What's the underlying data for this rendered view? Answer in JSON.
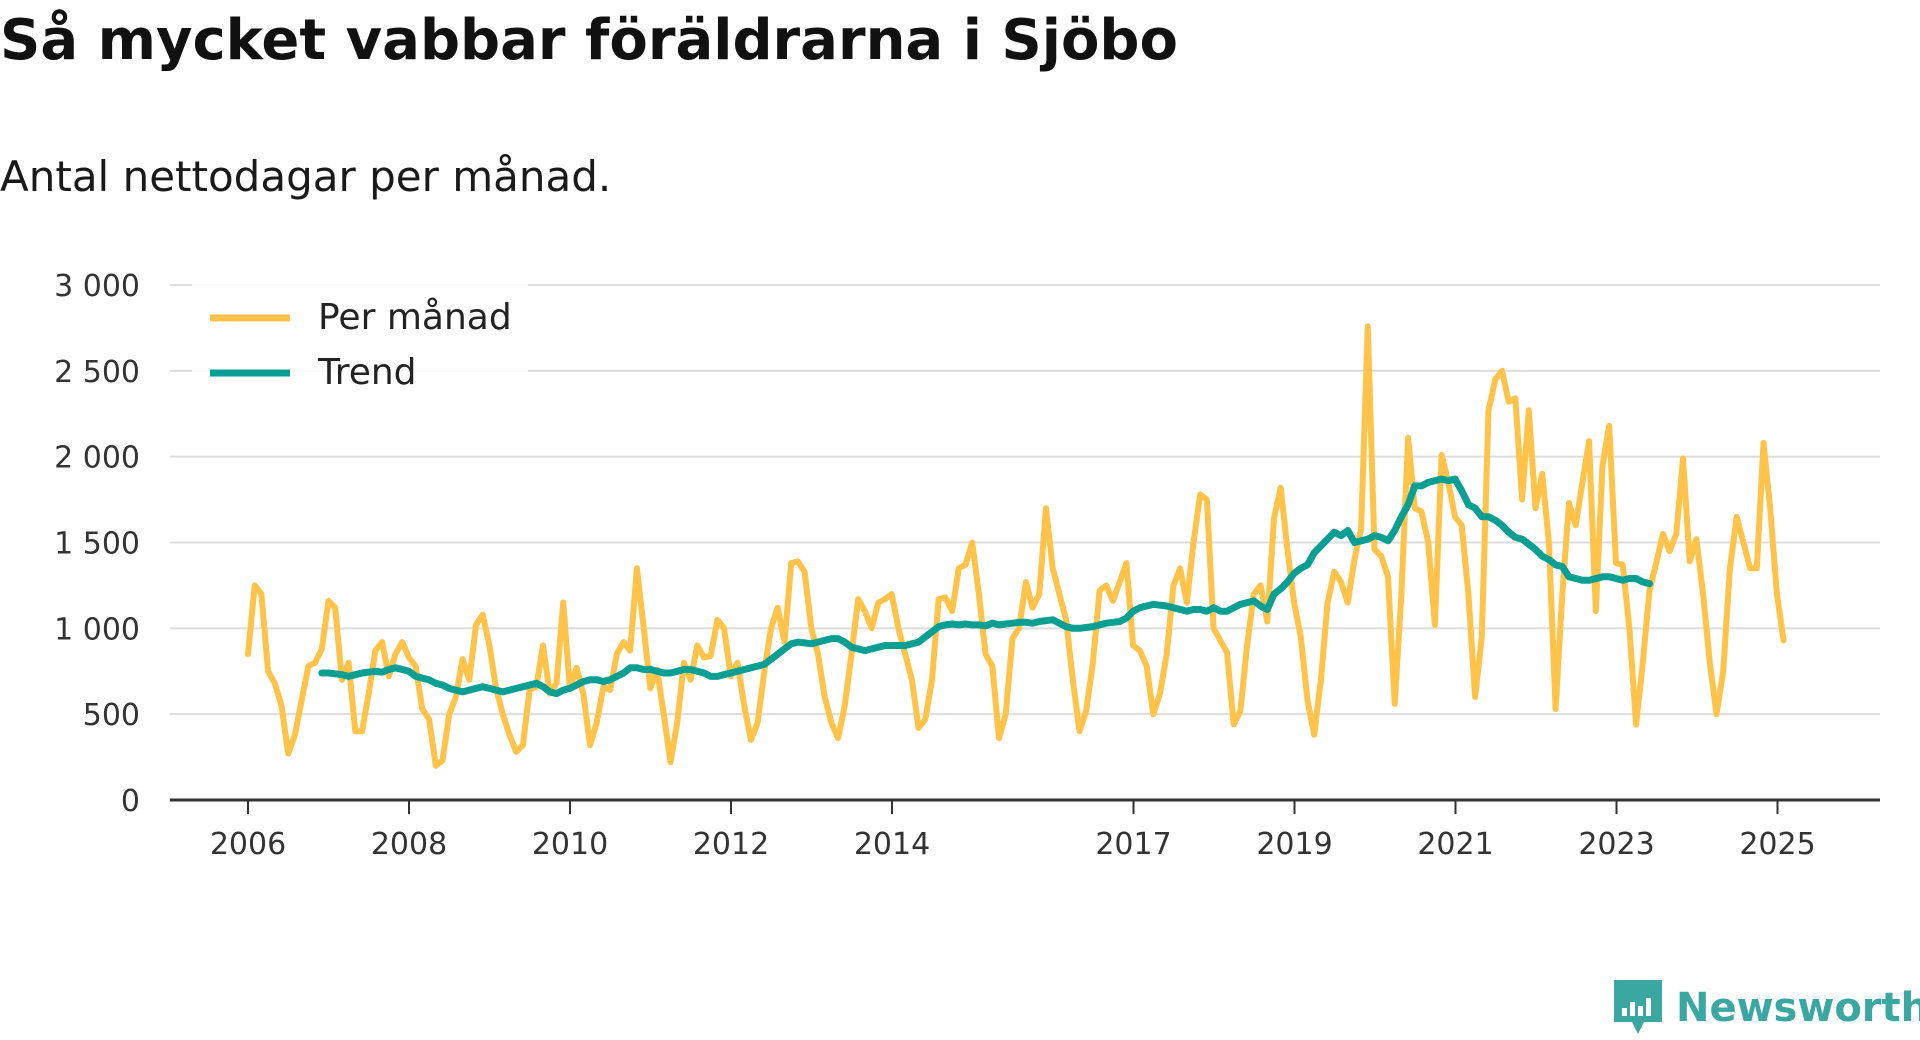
{
  "title": "Så mycket vabbar föräldrarna i Sjöbo",
  "subtitle": "Antal nettodagar per månad.",
  "brand": {
    "name": "Newsworthy"
  },
  "colors": {
    "monthly": "#FFC34A",
    "trend": "#0B9E92",
    "grid": "#DDDDDD",
    "axis": "#333333"
  },
  "chart_data": {
    "type": "line",
    "title": "Så mycket vabbar föräldrarna i Sjöbo",
    "subtitle": "Antal nettodagar per månad.",
    "ylim": [
      0,
      3000
    ],
    "yticks": [
      0,
      500,
      1000,
      1500,
      2000,
      2500,
      3000
    ],
    "ytick_labels": [
      "0",
      "500",
      "1 000",
      "1 500",
      "2 000",
      "2 500",
      "3 000"
    ],
    "xlim": [
      2006.0,
      2026.3
    ],
    "xticks": [
      2006,
      2008,
      2010,
      2012,
      2014,
      2017,
      2019,
      2021,
      2023,
      2025
    ],
    "xtick_labels": [
      "2006",
      "2008",
      "2010",
      "2012",
      "2014",
      "2017",
      "2019",
      "2021",
      "2023",
      "2025"
    ],
    "legend": {
      "position": "top-left",
      "entries": [
        "Per månad",
        "Trend"
      ]
    },
    "series": [
      {
        "name": "Per månad",
        "x_start": 2006.0,
        "step": 0.0833,
        "values": [
          850,
          1250,
          1200,
          750,
          680,
          550,
          270,
          380,
          580,
          780,
          800,
          880,
          1160,
          1120,
          700,
          800,
          400,
          400,
          620,
          870,
          920,
          720,
          850,
          920,
          830,
          780,
          530,
          470,
          200,
          230,
          500,
          600,
          820,
          700,
          1020,
          1080,
          900,
          650,
          500,
          380,
          280,
          320,
          640,
          660,
          900,
          620,
          680,
          1150,
          650,
          770,
          620,
          320,
          450,
          660,
          640,
          850,
          920,
          870,
          1350,
          1010,
          650,
          760,
          500,
          220,
          450,
          800,
          700,
          900,
          830,
          840,
          1050,
          1000,
          720,
          800,
          550,
          350,
          450,
          750,
          1000,
          1120,
          920,
          1380,
          1390,
          1330,
          1000,
          850,
          600,
          450,
          360,
          550,
          850,
          1170,
          1100,
          1000,
          1150,
          1170,
          1200,
          1000,
          850,
          700,
          420,
          470,
          700,
          1170,
          1180,
          1100,
          1350,
          1370,
          1500,
          1200,
          850,
          780,
          360,
          500,
          940,
          1000,
          1270,
          1120,
          1200,
          1700,
          1350,
          1200,
          1050,
          700,
          400,
          520,
          800,
          1220,
          1250,
          1160,
          1270,
          1380,
          900,
          870,
          780,
          500,
          620,
          850,
          1250,
          1350,
          1150,
          1500,
          1780,
          1750,
          1000,
          930,
          860,
          440,
          520,
          900,
          1200,
          1250,
          1040,
          1640,
          1820,
          1460,
          1150,
          950,
          580,
          380,
          700,
          1150,
          1330,
          1270,
          1150,
          1400,
          1580,
          2760,
          1460,
          1420,
          1300,
          560,
          1200,
          2110,
          1700,
          1680,
          1500,
          1020,
          2010,
          1850,
          1650,
          1600,
          1200,
          600,
          950,
          2270,
          2450,
          2500,
          2320,
          2340,
          1750,
          2270,
          1700,
          1900,
          1500,
          530,
          1200,
          1730,
          1600,
          1850,
          2090,
          1100,
          1950,
          2180,
          1380,
          1370,
          1000,
          440,
          800,
          1220,
          1380,
          1550,
          1450,
          1550,
          1990,
          1390,
          1520,
          1200,
          800,
          500,
          750,
          1350,
          1650,
          1500,
          1350,
          1350,
          2080,
          1700,
          1200,
          930
        ]
      },
      {
        "name": "Trend",
        "x_start": 2006.9167,
        "step": 0.0833,
        "values": [
          740,
          740,
          735,
          730,
          720,
          730,
          740,
          745,
          750,
          745,
          760,
          770,
          760,
          750,
          720,
          710,
          700,
          680,
          670,
          650,
          640,
          630,
          640,
          650,
          660,
          650,
          640,
          630,
          640,
          650,
          660,
          670,
          680,
          660,
          630,
          620,
          640,
          650,
          670,
          690,
          700,
          700,
          690,
          700,
          720,
          740,
          770,
          770,
          760,
          760,
          750,
          740,
          740,
          750,
          760,
          760,
          750,
          740,
          720,
          720,
          730,
          740,
          750,
          760,
          770,
          780,
          790,
          820,
          850,
          880,
          910,
          920,
          915,
          910,
          920,
          930,
          940,
          940,
          920,
          890,
          880,
          870,
          880,
          890,
          900,
          900,
          900,
          900,
          910,
          920,
          950,
          980,
          1010,
          1020,
          1025,
          1020,
          1025,
          1020,
          1020,
          1015,
          1030,
          1020,
          1025,
          1030,
          1035,
          1035,
          1030,
          1040,
          1045,
          1050,
          1030,
          1010,
          1000,
          1000,
          1005,
          1010,
          1020,
          1030,
          1035,
          1040,
          1060,
          1100,
          1120,
          1130,
          1140,
          1135,
          1130,
          1120,
          1110,
          1100,
          1110,
          1110,
          1100,
          1120,
          1100,
          1100,
          1120,
          1140,
          1150,
          1160,
          1130,
          1110,
          1200,
          1230,
          1270,
          1320,
          1350,
          1370,
          1440,
          1480,
          1520,
          1560,
          1540,
          1570,
          1500,
          1510,
          1520,
          1540,
          1530,
          1510,
          1570,
          1650,
          1720,
          1830,
          1830,
          1850,
          1860,
          1870,
          1860,
          1870,
          1800,
          1720,
          1700,
          1650,
          1650,
          1630,
          1600,
          1560,
          1530,
          1520,
          1490,
          1460,
          1420,
          1400,
          1370,
          1360,
          1300,
          1290,
          1280,
          1280,
          1290,
          1300,
          1300,
          1290,
          1280,
          1290,
          1290,
          1270,
          1260
        ]
      }
    ]
  }
}
